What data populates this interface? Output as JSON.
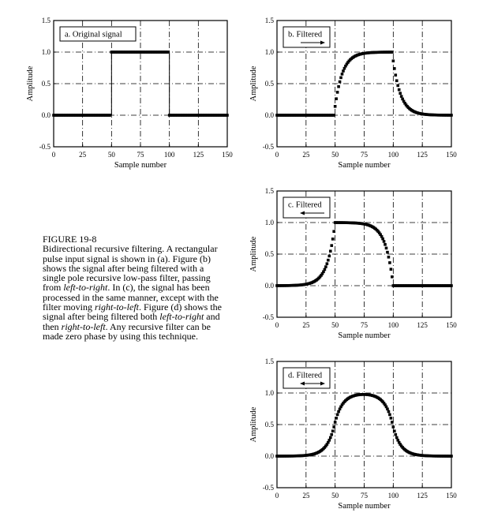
{
  "figure": {
    "caption_title": "FIGURE 19-8",
    "caption_parts": [
      {
        "text": "Bidirectional recursive filtering.  A rectangular pulse input signal is shown in (a). Figure (b) shows the signal after being filtered with a single pole recursive low-pass filter, passing from ",
        "italic": false
      },
      {
        "text": "left-to-right",
        "italic": true
      },
      {
        "text": ".  In (c), the signal has been processed in the same manner, except with the filter moving ",
        "italic": false
      },
      {
        "text": "right-to-left",
        "italic": true
      },
      {
        "text": ".  Figure (d) shows the signal after being filtered both ",
        "italic": false
      },
      {
        "text": "left-to-right",
        "italic": true
      },
      {
        "text": " and then ",
        "italic": false
      },
      {
        "text": "right-to-left",
        "italic": true
      },
      {
        "text": ".   Any recursive filter can be made zero phase by using this technique.",
        "italic": false
      }
    ]
  },
  "colors": {
    "axes": "#000000",
    "grid": "#000000",
    "marker": "#000000",
    "background": "#ffffff"
  },
  "chart_data": [
    {
      "id": "a",
      "type": "scatter",
      "signal": "rect",
      "title": "a.  Original signal",
      "arrow": "none",
      "xlabel": "Sample number",
      "ylabel": "Amplitude",
      "xlim": [
        0,
        150
      ],
      "ylim": [
        -0.5,
        1.5
      ],
      "xticks": [
        0,
        25,
        50,
        75,
        100,
        125,
        150
      ],
      "yticks": [
        -0.5,
        0.0,
        0.5,
        1.0,
        1.5
      ],
      "ytick_labels": [
        "-0.5",
        "0.0",
        "0.5",
        "1.0",
        "1.5"
      ],
      "grid": "dashed",
      "x": [
        0,
        150
      ],
      "pulse_start": 50,
      "pulse_end": 100,
      "low": 0.0,
      "high": 1.0
    },
    {
      "id": "b",
      "type": "scatter",
      "signal": "left-to-right",
      "title": "b.  Filtered",
      "arrow": "right",
      "xlabel": "Sample number",
      "ylabel": "Amplitude",
      "xlim": [
        0,
        150
      ],
      "ylim": [
        -0.5,
        1.5
      ],
      "xticks": [
        0,
        25,
        50,
        75,
        100,
        125,
        150
      ],
      "yticks": [
        -0.5,
        0.0,
        0.5,
        1.0,
        1.5
      ],
      "ytick_labels": [
        "-0.5",
        "0.0",
        "0.5",
        "1.0",
        "1.5"
      ],
      "grid": "dashed",
      "x": [
        0,
        150
      ],
      "pulse_start": 50,
      "pulse_end": 100,
      "pole": 0.86
    },
    {
      "id": "c",
      "type": "scatter",
      "signal": "right-to-left",
      "title": "c.  Filtered",
      "arrow": "left",
      "xlabel": "Sample number",
      "ylabel": "Amplitude",
      "xlim": [
        0,
        150
      ],
      "ylim": [
        -0.5,
        1.5
      ],
      "xticks": [
        0,
        25,
        50,
        75,
        100,
        125,
        150
      ],
      "yticks": [
        -0.5,
        0.0,
        0.5,
        1.0,
        1.5
      ],
      "ytick_labels": [
        "-0.5",
        "0.0",
        "0.5",
        "1.0",
        "1.5"
      ],
      "grid": "dashed",
      "x": [
        0,
        150
      ],
      "pulse_start": 50,
      "pulse_end": 100,
      "pole": 0.86
    },
    {
      "id": "d",
      "type": "scatter",
      "signal": "bidirectional",
      "title": "d.  Filtered",
      "arrow": "both",
      "xlabel": "Sample number",
      "ylabel": "Amplitude",
      "xlim": [
        0,
        150
      ],
      "ylim": [
        -0.5,
        1.5
      ],
      "xticks": [
        0,
        25,
        50,
        75,
        100,
        125,
        150
      ],
      "yticks": [
        -0.5,
        0.0,
        0.5,
        1.0,
        1.5
      ],
      "ytick_labels": [
        "-0.5",
        "0.0",
        "0.5",
        "1.0",
        "1.5"
      ],
      "grid": "dashed",
      "x": [
        0,
        150
      ],
      "pulse_start": 50,
      "pulse_end": 100,
      "pole": 0.86
    }
  ]
}
